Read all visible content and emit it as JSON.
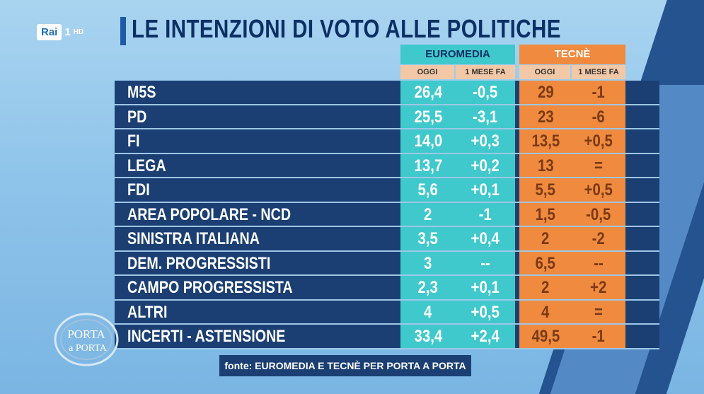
{
  "channel": {
    "brand": "Rai",
    "channel": "1",
    "quality": "HD"
  },
  "title": "LE INTENZIONI DI VOTO ALLE POLITICHE",
  "columns": {
    "euromedia": {
      "label": "EUROMEDIA",
      "today": "OGGI",
      "month_ago": "1 MESE FA"
    },
    "tecne": {
      "label": "TECNÈ",
      "today": "OGGI",
      "month_ago": "1 MESE FA"
    }
  },
  "rows": [
    {
      "party": "M5S",
      "eu_today": "26,4",
      "eu_month": "-0,5",
      "te_today": "29",
      "te_month": "-1"
    },
    {
      "party": "PD",
      "eu_today": "25,5",
      "eu_month": "-3,1",
      "te_today": "23",
      "te_month": "-6"
    },
    {
      "party": "FI",
      "eu_today": "14,0",
      "eu_month": "+0,3",
      "te_today": "13,5",
      "te_month": "+0,5"
    },
    {
      "party": "LEGA",
      "eu_today": "13,7",
      "eu_month": "+0,2",
      "te_today": "13",
      "te_month": "="
    },
    {
      "party": "FDI",
      "eu_today": "5,6",
      "eu_month": "+0,1",
      "te_today": "5,5",
      "te_month": "+0,5"
    },
    {
      "party": "AREA POPOLARE - NCD",
      "eu_today": "2",
      "eu_month": "-1",
      "te_today": "1,5",
      "te_month": "-0,5"
    },
    {
      "party": "SINISTRA ITALIANA",
      "eu_today": "3,5",
      "eu_month": "+0,4",
      "te_today": "2",
      "te_month": "-2"
    },
    {
      "party": "DEM. PROGRESSISTI",
      "eu_today": "3",
      "eu_month": "--",
      "te_today": "6,5",
      "te_month": "--"
    },
    {
      "party": "CAMPO PROGRESSISTA",
      "eu_today": "2,3",
      "eu_month": "+0,1",
      "te_today": "2",
      "te_month": "+2"
    },
    {
      "party": "ALTRI",
      "eu_today": "4",
      "eu_month": "+0,5",
      "te_today": "4",
      "te_month": "="
    },
    {
      "party": "INCERTI - ASTENSIONE",
      "eu_today": "33,4",
      "eu_month": "+2,4",
      "te_today": "49,5",
      "te_month": "-1"
    }
  ],
  "show_logo": {
    "line1": "PORTA",
    "line2": "a PORTA"
  },
  "source": "fonte: EUROMEDIA E TECNÈ PER PORTA A PORTA",
  "colors": {
    "navy": "#1b3f73",
    "teal": "#3fc9cc",
    "orange": "#f08a3e",
    "title": "#0c2f66"
  }
}
